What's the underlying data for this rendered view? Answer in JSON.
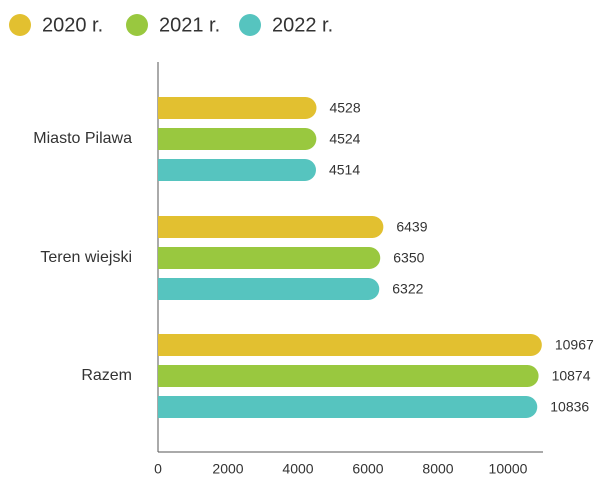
{
  "chart_data": {
    "type": "bar",
    "orientation": "horizontal",
    "categories": [
      "Miasto Pilawa",
      "Teren wiejski",
      "Razem"
    ],
    "series": [
      {
        "name": "2020 r.",
        "color": "#e2c030",
        "values": [
          4528,
          6439,
          10967
        ]
      },
      {
        "name": "2021 r.",
        "color": "#99c83f",
        "values": [
          4524,
          6350,
          10874
        ]
      },
      {
        "name": "2022 r.",
        "color": "#56c4bf",
        "values": [
          4514,
          6322,
          10836
        ]
      }
    ],
    "xlim": [
      0,
      11000
    ],
    "xticks": [
      0,
      2000,
      4000,
      6000,
      8000,
      10000
    ],
    "legend": "top-left"
  }
}
